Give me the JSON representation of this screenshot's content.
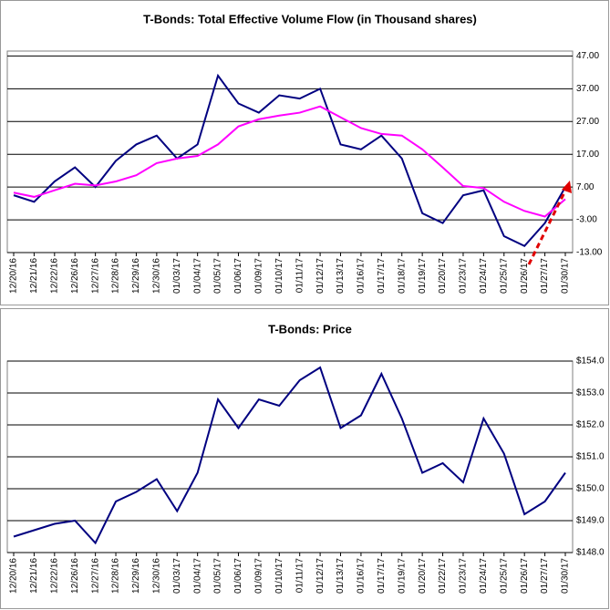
{
  "chart_data": [
    {
      "type": "line",
      "title": "T-Bonds: Total Effective Volume Flow (in Thousand shares)",
      "categories": [
        "12/20/16",
        "12/21/16",
        "12/22/16",
        "12/26/16",
        "12/27/16",
        "12/28/16",
        "12/29/16",
        "12/30/16",
        "01/03/17",
        "01/04/17",
        "01/05/17",
        "01/06/17",
        "01/09/17",
        "01/10/17",
        "01/11/17",
        "01/12/17",
        "01/13/17",
        "01/16/17",
        "01/17/17",
        "01/18/17",
        "01/19/17",
        "01/20/17",
        "01/23/17",
        "01/24/17",
        "01/25/17",
        "01/26/17",
        "01/27/17",
        "01/30/17"
      ],
      "series": [
        {
          "color": "#000080",
          "values": [
            4.5,
            2.5,
            8.7,
            13,
            7,
            15,
            20,
            22.7,
            15.7,
            20,
            41,
            32.5,
            29.7,
            35,
            34,
            37,
            20,
            18.5,
            22.7,
            15.7,
            -1,
            -4,
            4.5,
            6,
            -8,
            -11,
            -4,
            7
          ]
        },
        {
          "color": "#ff00ff",
          "values": [
            5.3,
            4,
            6,
            8,
            7.5,
            8.7,
            10.6,
            14.3,
            15.7,
            16.5,
            20,
            25.5,
            27.7,
            28.8,
            29.7,
            31.6,
            28.3,
            25,
            23.2,
            22.7,
            18.5,
            13,
            7.3,
            6.7,
            2.5,
            -0.3,
            -2,
            3.3
          ]
        }
      ],
      "ylim": [
        -13,
        48.5
      ],
      "yticks": [
        {
          "value": 47,
          "label": "47.00"
        },
        {
          "value": 37,
          "label": "37.00"
        },
        {
          "value": 27,
          "label": "27.00"
        },
        {
          "value": 17,
          "label": "17.00"
        },
        {
          "value": 7,
          "label": "7.00"
        },
        {
          "value": -3,
          "label": "-3.00"
        },
        {
          "value": -13,
          "label": "-13.00"
        }
      ],
      "grid": true
    },
    {
      "type": "line",
      "title": "T-Bonds: Price",
      "categories": [
        "12/20/16",
        "12/21/16",
        "12/22/16",
        "12/26/16",
        "12/27/16",
        "12/28/16",
        "12/29/16",
        "12/30/16",
        "01/03/17",
        "01/04/17",
        "01/05/17",
        "01/06/17",
        "01/09/17",
        "01/10/17",
        "01/11/17",
        "01/12/17",
        "01/13/17",
        "01/16/17",
        "01/17/17",
        "01/19/17",
        "01/20/17",
        "01/22/17",
        "01/23/17",
        "01/24/17",
        "01/25/17",
        "01/26/17",
        "01/27/17",
        "01/30/17"
      ],
      "series": [
        {
          "color": "#000080",
          "values": [
            148.5,
            148.7,
            148.9,
            149,
            148.3,
            149.6,
            149.9,
            150.3,
            149.3,
            150.5,
            152.8,
            151.9,
            152.8,
            152.6,
            153.4,
            153.8,
            151.9,
            152.3,
            153.6,
            152.2,
            150.5,
            150.8,
            150.2,
            152.2,
            151.1,
            149.2,
            149.6,
            150.5
          ]
        }
      ],
      "ylim": [
        148,
        154
      ],
      "yticks": [
        {
          "value": 154,
          "label": "$154.0"
        },
        {
          "value": 153,
          "label": "$153.0"
        },
        {
          "value": 152,
          "label": "$152.0"
        },
        {
          "value": 151,
          "label": "$151.0"
        },
        {
          "value": 150,
          "label": "$150.0"
        },
        {
          "value": 149,
          "label": "$149.0"
        },
        {
          "value": 148,
          "label": "$148.0"
        }
      ],
      "grid": true
    }
  ]
}
